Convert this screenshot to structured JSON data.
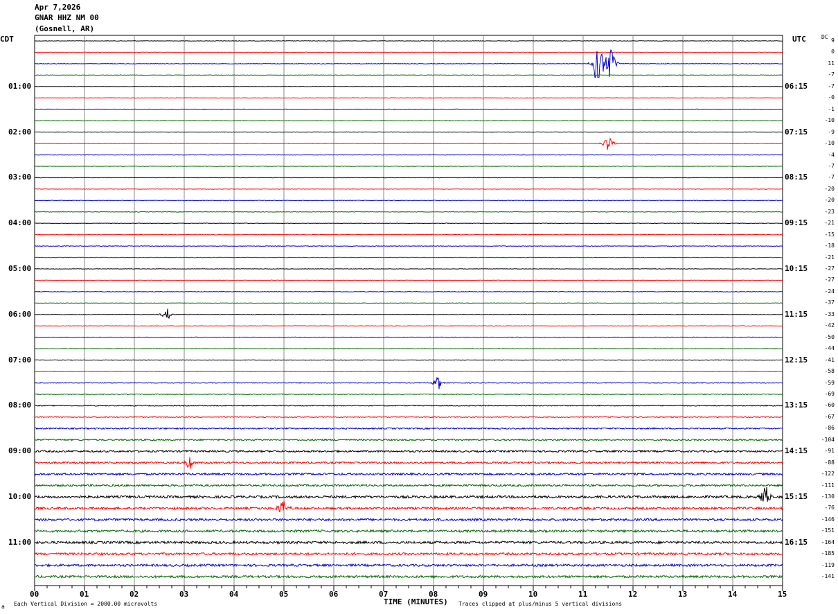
{
  "header": {
    "date": "Apr 7,2026",
    "station": "GNAR HHZ NM 00",
    "location": "(Gosnell, AR)"
  },
  "left_axis_label": "CDT",
  "right_axis_label": "UTC",
  "dc_label": "DC",
  "footer": {
    "corner": "a",
    "scale_note": "Each Vertical Division = 2000.00 microvolts",
    "clip_note": "Traces clipped at plus/minus 5 vertical divisions"
  },
  "colors": {
    "trace_cycle": [
      "#000000",
      "#ff0000",
      "#0000cc",
      "#006600"
    ],
    "grid": "#888888",
    "frame": "#000000"
  },
  "chart_data": {
    "type": "line",
    "title": "",
    "xlabel": "TIME (MINUTES)",
    "xlim": [
      0,
      15
    ],
    "x_ticks": [
      "00",
      "01",
      "02",
      "03",
      "04",
      "05",
      "06",
      "07",
      "08",
      "09",
      "10",
      "11",
      "12",
      "13",
      "14",
      "15"
    ],
    "minor_ticks_per_minute": 4,
    "trace_count": 48,
    "minutes_per_trace": 15,
    "left_time_labels": [
      {
        "trace": 4,
        "text": "01:00"
      },
      {
        "trace": 8,
        "text": "02:00"
      },
      {
        "trace": 12,
        "text": "03:00"
      },
      {
        "trace": 16,
        "text": "04:00"
      },
      {
        "trace": 20,
        "text": "05:00"
      },
      {
        "trace": 24,
        "text": "06:00"
      },
      {
        "trace": 28,
        "text": "07:00"
      },
      {
        "trace": 32,
        "text": "08:00"
      },
      {
        "trace": 36,
        "text": "09:00"
      },
      {
        "trace": 40,
        "text": "10:00"
      },
      {
        "trace": 44,
        "text": "11:00"
      }
    ],
    "right_time_labels": [
      {
        "trace": 4,
        "text": "06:15"
      },
      {
        "trace": 8,
        "text": "07:15"
      },
      {
        "trace": 12,
        "text": "08:15"
      },
      {
        "trace": 16,
        "text": "09:15"
      },
      {
        "trace": 20,
        "text": "10:15"
      },
      {
        "trace": 24,
        "text": "11:15"
      },
      {
        "trace": 28,
        "text": "12:15"
      },
      {
        "trace": 32,
        "text": "13:15"
      },
      {
        "trace": 36,
        "text": "14:15"
      },
      {
        "trace": 40,
        "text": "15:15"
      },
      {
        "trace": 44,
        "text": "16:15"
      }
    ],
    "dc_offsets": [
      "9",
      "0",
      "11",
      "-7",
      "-7",
      "-0",
      "-1",
      "-10",
      "-9",
      "-10",
      "-4",
      "-7",
      "-7",
      "-20",
      "-20",
      "-23",
      "-21",
      "-15",
      "-18",
      "-21",
      "-27",
      "-27",
      "-24",
      "-37",
      "-33",
      "-42",
      "-50",
      "-44",
      "-41",
      "-58",
      "-59",
      "-69",
      "-60",
      "-67",
      "-86",
      "-104",
      "-91",
      "-88",
      "-122",
      "-111",
      "-130",
      "-76",
      "-146",
      "-151",
      "-164",
      "-185",
      "-119",
      "-141"
    ],
    "noise_levels": [
      0.15,
      0.15,
      0.18,
      0.18,
      0.15,
      0.15,
      0.18,
      0.18,
      0.15,
      0.15,
      0.18,
      0.18,
      0.15,
      0.15,
      0.18,
      0.18,
      0.15,
      0.15,
      0.18,
      0.18,
      0.15,
      0.15,
      0.18,
      0.18,
      0.18,
      0.18,
      0.2,
      0.2,
      0.18,
      0.2,
      0.25,
      0.25,
      0.3,
      0.3,
      0.45,
      0.5,
      0.6,
      0.6,
      0.65,
      0.65,
      0.8,
      0.75,
      0.75,
      0.75,
      0.8,
      0.75,
      0.75,
      0.75
    ],
    "events": [
      {
        "trace": 2,
        "minute": 11.3,
        "amplitude": 10
      },
      {
        "trace": 2,
        "minute": 11.55,
        "amplitude": 4
      },
      {
        "trace": 9,
        "minute": 11.5,
        "amplitude": 2
      },
      {
        "trace": 24,
        "minute": 2.65,
        "amplitude": 1.5
      },
      {
        "trace": 30,
        "minute": 8.1,
        "amplitude": 1.5
      },
      {
        "trace": 40,
        "minute": 14.65,
        "amplitude": 3
      },
      {
        "trace": 41,
        "minute": 4.98,
        "amplitude": 2
      },
      {
        "trace": 37,
        "minute": 3.1,
        "amplitude": 1.5
      }
    ]
  }
}
